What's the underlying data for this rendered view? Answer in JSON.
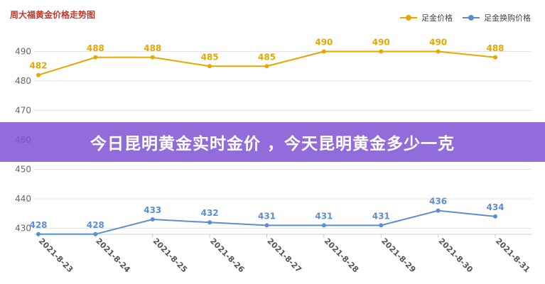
{
  "colors": {
    "gold": "#e6a700",
    "blue": "#5b8fd1",
    "banner": "#8052d6"
  },
  "banner": {
    "text": "今日昆明黄金实时金价 ，今天昆明黄金多少一克"
  },
  "chart_data": {
    "type": "line",
    "title": "周大福黄金价格走势图",
    "xlabel": "",
    "ylabel": "",
    "categories": [
      "2021-8-23",
      "2021-8-24",
      "2021-8-25",
      "2021-8-26",
      "2021-8-27",
      "2021-8-28",
      "2021-8-29",
      "2021-8-30",
      "2021-8-31"
    ],
    "yticks": [
      430,
      440,
      450,
      460,
      470,
      480,
      490
    ],
    "ylim": [
      428,
      493
    ],
    "grid": true,
    "legend_position": "top-right",
    "series": [
      {
        "name": "足金价格",
        "color": "#e6a700",
        "values": [
          482,
          488,
          488,
          485,
          485,
          490,
          490,
          490,
          488
        ]
      },
      {
        "name": "足金换购价格",
        "color": "#5b8fd1",
        "values": [
          428,
          428,
          433,
          432,
          431,
          431,
          431,
          436,
          434
        ]
      }
    ]
  }
}
